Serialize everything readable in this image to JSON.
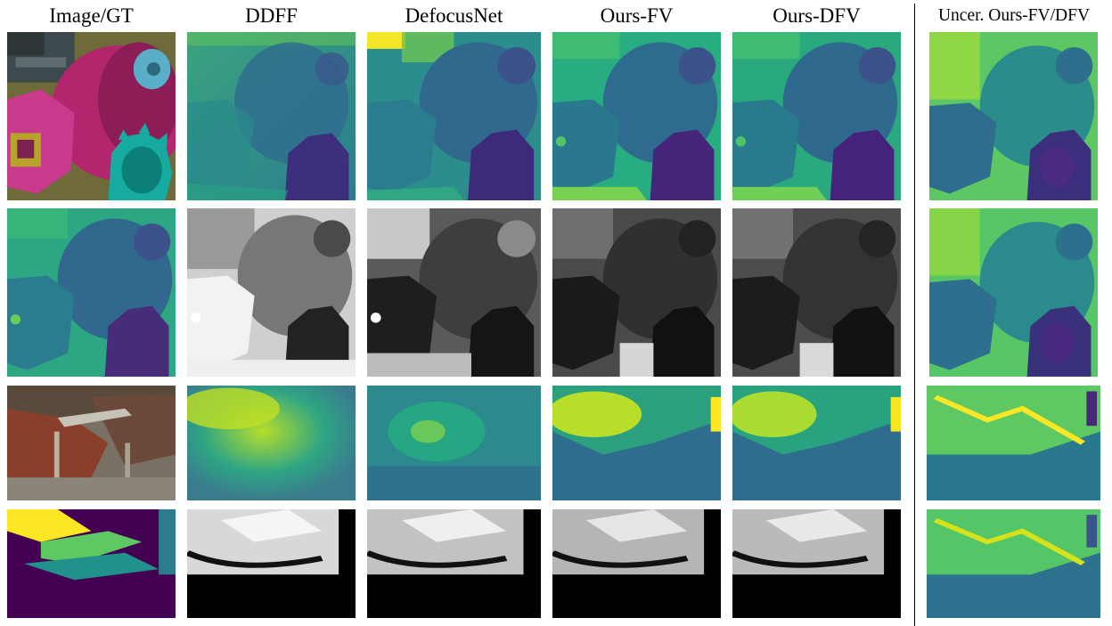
{
  "figure": {
    "columns": [
      {
        "id": "image-gt",
        "label": "Image/GT"
      },
      {
        "id": "ddff",
        "label": "DDFF"
      },
      {
        "id": "defocusnet",
        "label": "DefocusNet"
      },
      {
        "id": "ours-fv",
        "label": "Ours-FV"
      },
      {
        "id": "ours-dfv",
        "label": "Ours-DFV"
      },
      {
        "id": "uncertainty",
        "label": "Uncer. Ours-FV/DFV"
      }
    ],
    "rows": [
      {
        "id": "gears-depth",
        "content": [
          "rgb-image",
          "depth-map",
          "depth-map",
          "depth-map",
          "depth-map",
          "uncertainty-map"
        ]
      },
      {
        "id": "gears-error",
        "content": [
          "ground-truth-depth",
          "error-map",
          "error-map",
          "error-map",
          "error-map",
          "uncertainty-map"
        ]
      },
      {
        "id": "chair-depth",
        "content": [
          "rgb-image",
          "depth-map",
          "depth-map",
          "depth-map",
          "depth-map",
          "uncertainty-map"
        ]
      },
      {
        "id": "chair-error",
        "content": [
          "ground-truth-depth",
          "error-map",
          "error-map",
          "error-map",
          "error-map",
          "uncertainty-map"
        ]
      }
    ],
    "colormap": "viridis",
    "colors": {
      "viridis_dark": "#440154",
      "viridis_blue": "#3b528b",
      "viridis_teal": "#21918c",
      "viridis_green": "#5ec962",
      "viridis_yellow": "#fde725"
    }
  }
}
